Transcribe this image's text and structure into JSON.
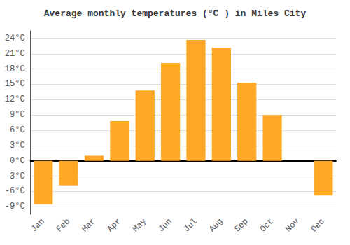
{
  "chart_data": {
    "type": "bar",
    "title": "Average monthly temperatures (°C ) in Miles City",
    "categories": [
      "Jan",
      "Feb",
      "Mar",
      "Apr",
      "May",
      "Jun",
      "Jul",
      "Aug",
      "Sep",
      "Oct",
      "Nov",
      "Dec"
    ],
    "values": [
      -8.5,
      -4.8,
      1.0,
      7.8,
      13.8,
      19.2,
      23.7,
      22.2,
      15.3,
      9.0,
      0.0,
      -6.8
    ],
    "color": "#FFA726",
    "ylim": [
      -10.5,
      25.5
    ],
    "yticks": [
      {
        "value": -9,
        "label": "-9°C"
      },
      {
        "value": -6,
        "label": "-6°C"
      },
      {
        "value": -3,
        "label": "-3°C"
      },
      {
        "value": 0,
        "label": "0°C"
      },
      {
        "value": 3,
        "label": "3°C"
      },
      {
        "value": 6,
        "label": "6°C"
      },
      {
        "value": 9,
        "label": "9°C"
      },
      {
        "value": 12,
        "label": "12°C"
      },
      {
        "value": 15,
        "label": "15°C"
      },
      {
        "value": 18,
        "label": "18°C"
      },
      {
        "value": 21,
        "label": "21°C"
      },
      {
        "value": 24,
        "label": "24°C"
      }
    ],
    "grid": true
  }
}
